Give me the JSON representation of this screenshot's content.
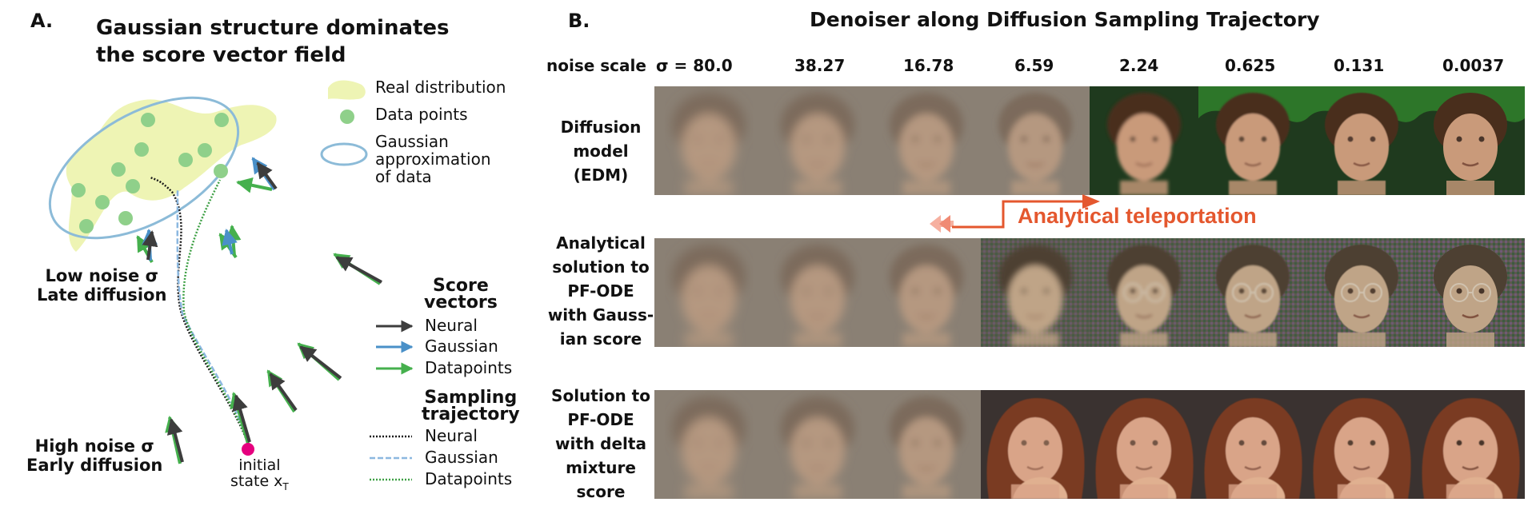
{
  "panel_a": {
    "letter": "A.",
    "title_line1": "Gaussian structure dominates",
    "title_line2": "the score vector field",
    "legend": {
      "real_distribution": "Real distribution",
      "data_points": "Data points",
      "gaussian_approx": [
        "Gaussian",
        "approximation",
        "of data"
      ]
    },
    "low_noise": [
      "Low noise σ",
      "Late diffusion"
    ],
    "high_noise": [
      "High noise σ",
      "Early diffusion"
    ],
    "initial_state": [
      "initial",
      "state x"
    ],
    "initial_state_sub": "T",
    "score_vectors": {
      "heading": [
        "Score",
        "vectors"
      ],
      "items": [
        {
          "label": "Neural",
          "color": "#3d3d3d"
        },
        {
          "label": "Gaussian",
          "color": "#4a90c8"
        },
        {
          "label": "Datapoints",
          "color": "#45b04d"
        }
      ]
    },
    "sampling_trajectory": {
      "heading": [
        "Sampling",
        "trajectory"
      ],
      "items": [
        {
          "label": "Neural",
          "color": "#1a1a1a"
        },
        {
          "label": "Gaussian",
          "color": "#8cb8e0"
        },
        {
          "label": "Datapoints",
          "color": "#3ea045"
        }
      ]
    },
    "colors": {
      "real_distribution": "#eef4b4",
      "data_point": "#8fd08a",
      "ellipse": "#8cbbd8",
      "initial_state": "#e5007e"
    }
  },
  "panel_b": {
    "letter": "B.",
    "title": "Denoiser along Diffusion Sampling Trajectory",
    "noise_scale_label": "noise scale",
    "sigmas": [
      "σ = 80.0",
      "38.27",
      "16.78",
      "6.59",
      "2.24",
      "0.625",
      "0.131",
      "0.0037"
    ],
    "rows": [
      {
        "label": [
          "Diffusion",
          "model",
          "(EDM)"
        ]
      },
      {
        "label": [
          "Analytical",
          "solution to",
          "PF-ODE",
          "with Gauss-",
          "ian score"
        ]
      },
      {
        "label": [
          "Solution to",
          "PF-ODE",
          "with delta",
          "mixture",
          "score"
        ]
      }
    ],
    "teleport_label": "Analytical teleportation",
    "teleport_color": "#e4572e"
  }
}
